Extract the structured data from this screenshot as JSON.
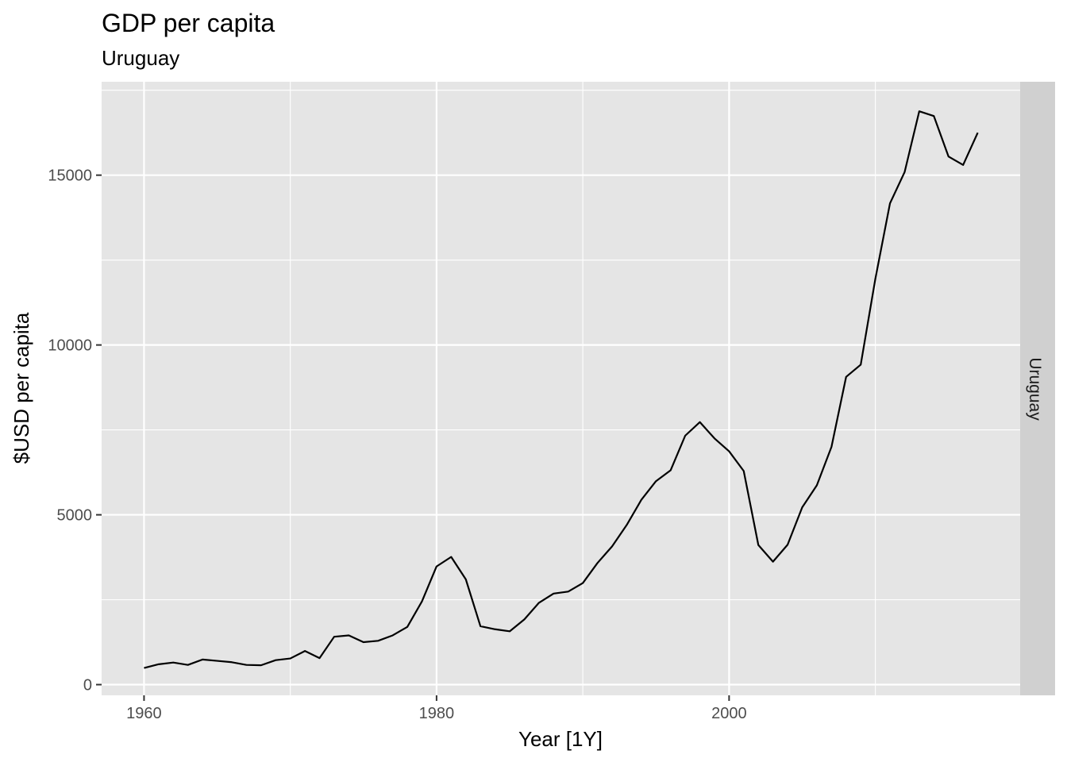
{
  "chart_data": {
    "type": "line",
    "title": "GDP per capita",
    "subtitle": "Uruguay",
    "xlabel": "Year [1Y]",
    "ylabel": "$USD per capita",
    "facet_label": "Uruguay",
    "xlim": [
      1957.1,
      2019.9
    ],
    "ylim": [
      -315,
      17750
    ],
    "x_ticks": [
      1960,
      1980,
      2000
    ],
    "x_tick_labels": [
      "1960",
      "1980",
      "2000"
    ],
    "y_ticks": [
      0,
      5000,
      10000,
      15000
    ],
    "y_tick_labels": [
      "0",
      "5000",
      "10000",
      "15000"
    ],
    "x_minor_ticks": [
      1970,
      1990,
      2010
    ],
    "y_minor_ticks": [
      2500,
      7500,
      12500,
      17500
    ],
    "grid": true,
    "legend": "none",
    "colors": {
      "panel": "#e5e5e5",
      "grid": "#ffffff",
      "line": "#000000",
      "strip": "#d0d0d0"
    },
    "series": [
      {
        "x": [
          1960,
          1961,
          1962,
          1963,
          1964,
          1965,
          1966,
          1967,
          1968,
          1969,
          1970,
          1971,
          1972,
          1973,
          1974,
          1975,
          1976,
          1977,
          1978,
          1979,
          1980,
          1981,
          1982,
          1983,
          1984,
          1985,
          1986,
          1987,
          1988,
          1989,
          1990,
          1991,
          1992,
          1993,
          1994,
          1995,
          1996,
          1997,
          1998,
          1999,
          2000,
          2001,
          2002,
          2003,
          2004,
          2005,
          2006,
          2007,
          2008,
          2009,
          2010,
          2011,
          2012,
          2013,
          2014,
          2015,
          2016,
          2017
        ],
        "values": [
          490,
          600,
          650,
          580,
          740,
          700,
          660,
          580,
          570,
          720,
          770,
          990,
          780,
          1410,
          1450,
          1250,
          1290,
          1450,
          1700,
          2450,
          3480,
          3760,
          3100,
          1720,
          1630,
          1570,
          1920,
          2410,
          2680,
          2740,
          2990,
          3580,
          4070,
          4700,
          5440,
          5990,
          6310,
          7330,
          7730,
          7250,
          6870,
          6290,
          4110,
          3620,
          4120,
          5220,
          5870,
          7000,
          9060,
          9420,
          11950,
          14170,
          15090,
          16880,
          16740,
          15550,
          15300,
          16250
        ]
      }
    ]
  }
}
